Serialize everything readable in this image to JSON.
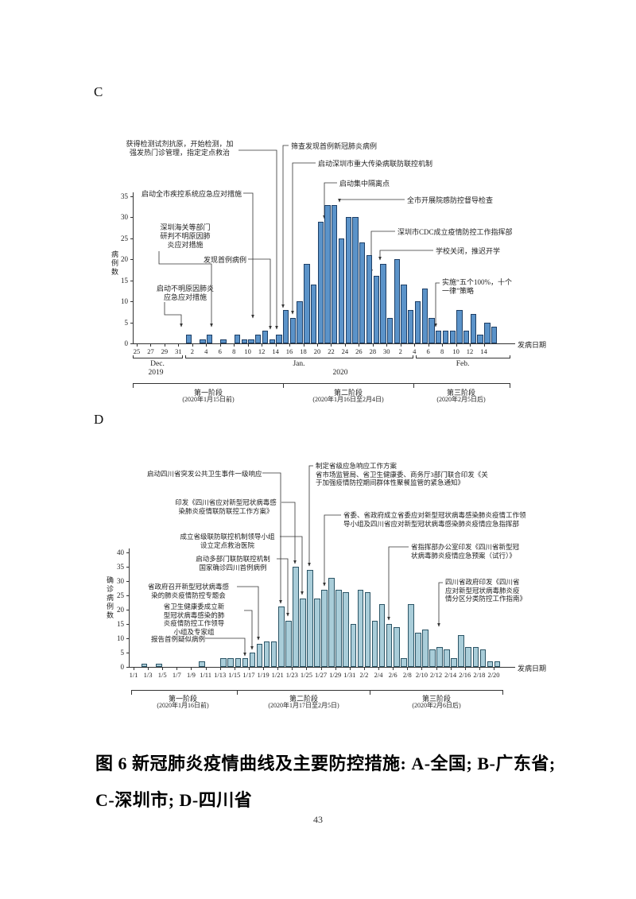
{
  "page": {
    "section_labels": [
      "C",
      "D"
    ],
    "number": "43"
  },
  "caption": {
    "line1": "图 6 新冠肺炎疫情曲线及主要防控措施: A-全国; B-广东省;",
    "line2": "C-深圳市; D-四川省"
  },
  "chart_data": [
    {
      "id": "C",
      "panel_label": "C",
      "type": "bar",
      "region": "深圳市",
      "ylabel": "病例数",
      "xlabel": "发病日期",
      "ylim": [
        0,
        35
      ],
      "ytick_step": 5,
      "bar_color": "#5b93c9",
      "bar_border": "#1e3f66",
      "categories": [
        "12/25",
        "12/26",
        "12/27",
        "12/28",
        "12/29",
        "12/30",
        "12/31",
        "1/1",
        "1/2",
        "1/3",
        "1/4",
        "1/5",
        "1/6",
        "1/7",
        "1/8",
        "1/9",
        "1/10",
        "1/11",
        "1/12",
        "1/13",
        "1/14",
        "1/15",
        "1/16",
        "1/17",
        "1/18",
        "1/19",
        "1/20",
        "1/21",
        "1/22",
        "1/23",
        "1/24",
        "1/25",
        "1/26",
        "1/27",
        "1/28",
        "1/29",
        "1/30",
        "1/31",
        "2/1",
        "2/2",
        "2/3",
        "2/4",
        "2/5",
        "2/6",
        "2/7",
        "2/8",
        "2/9",
        "2/10",
        "2/11",
        "2/12",
        "2/13",
        "2/14"
      ],
      "values": [
        0,
        0,
        0,
        0,
        0,
        0,
        0,
        2,
        0,
        1,
        2,
        0,
        1,
        0,
        2,
        1,
        1,
        2,
        3,
        1,
        2,
        8,
        6,
        10,
        19,
        14,
        29,
        33,
        33,
        25,
        30,
        30,
        24,
        21,
        16,
        19,
        6,
        20,
        14,
        8,
        10,
        13,
        6,
        3,
        3,
        3,
        8,
        3,
        7,
        2,
        5,
        4
      ],
      "x_tick_labels": [
        "25",
        "27",
        "29",
        "31",
        "2",
        "4",
        "6",
        "8",
        "10",
        "12",
        "14",
        "16",
        "18",
        "20",
        "22",
        "24",
        "26",
        "28",
        "30",
        "2",
        "4",
        "6",
        "8",
        "10",
        "12",
        "14"
      ],
      "months": [
        {
          "label": "Dec."
        },
        {
          "label": "Jan."
        },
        {
          "label": "Feb."
        }
      ],
      "years": [
        "2019",
        "2020"
      ],
      "phases": [
        {
          "name": "第一阶段",
          "range": "(2020年1月15日前)"
        },
        {
          "name": "第二阶段",
          "range": "(2020年1月16日至2月4日)"
        },
        {
          "name": "第三阶段",
          "range": "(2020年2月5日后)"
        }
      ],
      "annotations": [
        {
          "lines": [
            "获得检测试剂抗原，开始检测，加",
            "强发热门诊管理，指定定点救治"
          ]
        },
        {
          "lines": [
            "筛查发现首例新冠肺炎病例"
          ]
        },
        {
          "lines": [
            "启动深圳市重大传染病联防联控机制"
          ]
        },
        {
          "lines": [
            "启动集中隔离点"
          ]
        },
        {
          "lines": [
            "全市开展院感防控督导检查"
          ]
        },
        {
          "lines": [
            "启动全市疾控系统应急应对措施"
          ]
        },
        {
          "lines": [
            "深圳市CDC成立疫情防控工作指挥部"
          ]
        },
        {
          "lines": [
            "深圳海关等部门",
            "研判不明原因肺",
            "炎应对措施"
          ]
        },
        {
          "lines": [
            "学校关闭，推迟开学"
          ]
        },
        {
          "lines": [
            "发现首例病例"
          ]
        },
        {
          "lines": [
            "实施“五个100%，十个",
            "一律”策略"
          ]
        },
        {
          "lines": [
            "启动不明原因肺炎",
            "应急应对措施"
          ]
        }
      ]
    },
    {
      "id": "D",
      "panel_label": "D",
      "type": "bar",
      "region": "四川省",
      "ylabel": "确诊病例数",
      "xlabel": "发病日期",
      "ylim": [
        0,
        40
      ],
      "ytick_step": 5,
      "bar_color": "#a9cdd9",
      "bar_border": "#2c5566",
      "categories": [
        "1/1",
        "1/2",
        "1/3",
        "1/4",
        "1/5",
        "1/6",
        "1/7",
        "1/8",
        "1/9",
        "1/10",
        "1/11",
        "1/12",
        "1/13",
        "1/14",
        "1/15",
        "1/16",
        "1/17",
        "1/18",
        "1/19",
        "1/20",
        "1/21",
        "1/22",
        "1/23",
        "1/24",
        "1/25",
        "1/26",
        "1/27",
        "1/28",
        "1/29",
        "1/30",
        "1/31",
        "2/1",
        "2/2",
        "2/3",
        "2/4",
        "2/5",
        "2/6",
        "2/7",
        "2/8",
        "2/9",
        "2/10",
        "2/11",
        "2/12",
        "2/13",
        "2/14",
        "2/15",
        "2/16",
        "2/17",
        "2/18",
        "2/19",
        "2/20"
      ],
      "values": [
        0,
        1,
        0,
        1,
        0,
        0,
        0,
        0,
        0,
        2,
        0,
        0,
        3,
        3,
        3,
        3,
        5,
        8,
        9,
        9,
        21,
        16,
        35,
        24,
        34,
        24,
        27,
        31,
        27,
        26,
        15,
        27,
        26,
        16,
        22,
        15,
        14,
        3,
        22,
        12,
        13,
        6,
        7,
        6,
        3,
        11,
        7,
        7,
        6,
        2,
        2
      ],
      "x_tick_labels": [
        "1/1",
        "1/3",
        "1/5",
        "1/7",
        "1/9",
        "1/11",
        "1/13",
        "1/15",
        "1/17",
        "1/19",
        "1/21",
        "1/23",
        "1/25",
        "1/27",
        "1/29",
        "1/31",
        "2/2",
        "2/4",
        "2/6",
        "2/8",
        "2/10",
        "2/12",
        "2/14",
        "2/16",
        "2/18",
        "2/20"
      ],
      "phases": [
        {
          "name": "第一阶段",
          "range": "(2020年1月16日前)"
        },
        {
          "name": "第二阶段",
          "range": "(2020年1月17日至2月5日)"
        },
        {
          "name": "第三阶段",
          "range": "(2020年2月6日后)"
        }
      ],
      "annotations": [
        {
          "lines": [
            "启动四川省突发公共卫生事件一级响应"
          ]
        },
        {
          "lines": [
            "制定省级应急响应工作方案",
            "省市场监管局、省卫生健康委、商务厅3部门联合印发《关",
            "于加强疫情防控期间群体性聚餐监管的紧急通知》"
          ]
        },
        {
          "lines": [
            "印发《四川省应对新型冠状病毒感",
            "染肺炎疫情联防联控工作方案》"
          ]
        },
        {
          "lines": [
            "省委、省政府成立省委应对新型冠状病毒感染肺炎疫情工作领",
            "导小组及四川省应对新型冠状病毒感染肺炎疫情应急指挥部"
          ]
        },
        {
          "lines": [
            "成立省级联防联控机制领导小组",
            "设立定点救治医院"
          ]
        },
        {
          "lines": [
            "省指挥部办公室印发《四川省新型冠",
            "状病毒肺炎疫情应急预案（试行）》"
          ]
        },
        {
          "lines": [
            "启动多部门联防联控机制",
            "国家确诊四川首例病例"
          ]
        },
        {
          "lines": [
            "省政府召开新型冠状病毒感",
            "染的肺炎疫情防控专题会"
          ]
        },
        {
          "lines": [
            "四川省政府印发《四川省",
            "应对新型冠状病毒肺炎疫",
            "情分区分类防控工作指南》"
          ]
        },
        {
          "lines": [
            "省卫生健康委成立新",
            "型冠状病毒感染的肺",
            "炎疫情防控工作领导",
            "小组及专家组"
          ]
        },
        {
          "lines": [
            "报告首例疑似病例"
          ]
        }
      ]
    }
  ]
}
